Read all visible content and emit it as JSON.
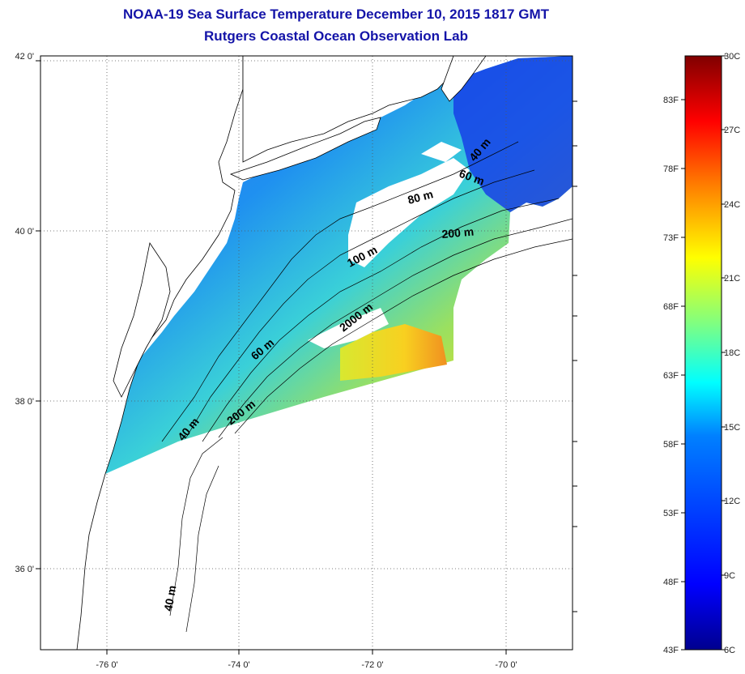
{
  "title": {
    "line1": "NOAA-19 Sea Surface Temperature December 10, 2015 1817 GMT",
    "line2": "Rutgers Coastal Ocean Observation Lab"
  },
  "map": {
    "lon_ticks": [
      "-76 0'",
      "-74 0'",
      "-72 0'",
      "-70 0'"
    ],
    "lat_ticks": [
      "42 0'",
      "40 0'",
      "38 0'",
      "36 0'"
    ],
    "contour_labels": [
      "40 m",
      "60 m",
      "80 m",
      "100 m",
      "200 m",
      "2000 m",
      "40 m",
      "60 m",
      "200 m",
      "40 m"
    ],
    "land_color": "#ffffff",
    "grid": "dotted"
  },
  "colorbar": {
    "celsius_labels": [
      "30C",
      "27C",
      "24C",
      "21C",
      "18C",
      "15C",
      "12C",
      "9C",
      "6C"
    ],
    "fahrenheit_labels": [
      "83F",
      "78F",
      "73F",
      "68F",
      "63F",
      "58F",
      "53F",
      "48F",
      "43F"
    ],
    "colors": [
      "#00008f",
      "#0000ff",
      "#0080ff",
      "#00ffff",
      "#80ff80",
      "#ffff00",
      "#ff8000",
      "#ff0000",
      "#800000"
    ]
  }
}
